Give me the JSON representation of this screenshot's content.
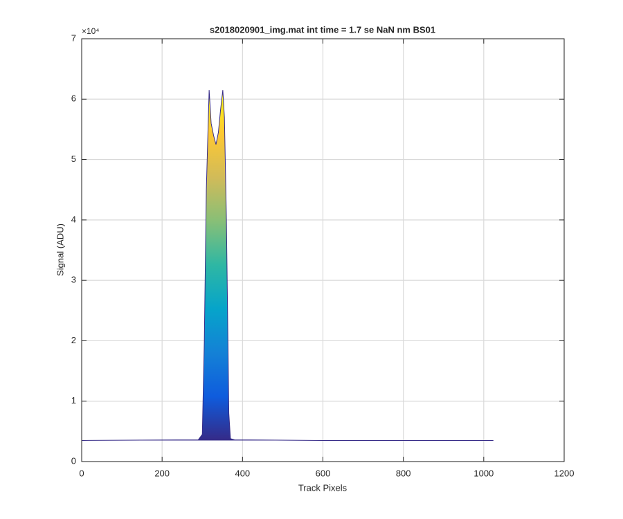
{
  "chart_data": {
    "type": "area",
    "title": "s2018020901_img.mat int time = 1.7 se  NaN nm BS01",
    "x_label": "Track Pixels",
    "y_label": "Signal (ADU)",
    "y_multiplier": "×10⁴",
    "x": [
      1,
      290,
      300,
      305,
      310,
      317,
      322,
      328,
      334,
      340,
      345,
      351,
      355,
      360,
      366,
      370,
      380,
      600,
      1024
    ],
    "values": [
      3500,
      3600,
      4500,
      20000,
      45000,
      61500,
      56000,
      54000,
      52500,
      54500,
      58000,
      61500,
      57000,
      40000,
      8000,
      3800,
      3600,
      3500,
      3500
    ],
    "colormap": [
      "#352a87",
      "#0f5cdd",
      "#1481d6",
      "#06a4ca",
      "#2eb7a4",
      "#87bf77",
      "#d1bb59",
      "#fec832",
      "#f9fb0e"
    ],
    "xlim": [
      0,
      1200
    ],
    "xticks": [
      0,
      200,
      400,
      600,
      800,
      1000,
      1200
    ],
    "ylim": [
      0,
      70000
    ],
    "yticks": [
      {
        "value": 0,
        "label": "0"
      },
      {
        "value": 10000,
        "label": "1"
      },
      {
        "value": 20000,
        "label": "2"
      },
      {
        "value": 30000,
        "label": "3"
      },
      {
        "value": 40000,
        "label": "4"
      },
      {
        "value": 50000,
        "label": "5"
      },
      {
        "value": 60000,
        "label": "6"
      },
      {
        "value": 70000,
        "label": "7"
      }
    ],
    "grid": true
  }
}
